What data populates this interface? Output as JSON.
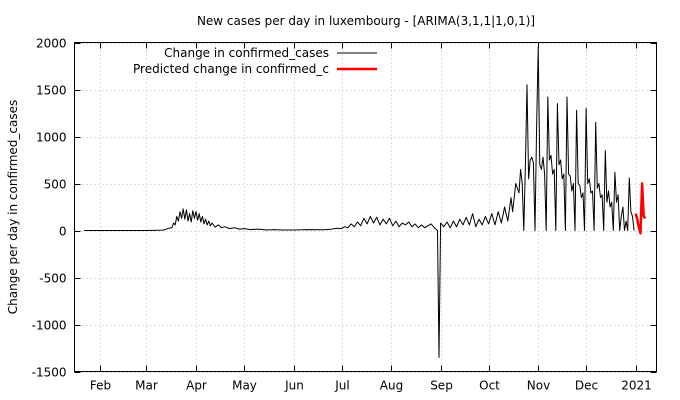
{
  "chart_data": {
    "type": "line",
    "title": "New cases per day in luxembourg -  [ARIMA(3,1,1|1,0,1)]",
    "xlabel": "",
    "ylabel": "Change per day in confirmed_cases",
    "ylim": [
      -1500,
      2000
    ],
    "yticks": [
      -1500,
      -1000,
      -500,
      0,
      500,
      1000,
      1500,
      2000
    ],
    "xlim": [
      "2020-01-16",
      "2021-01-14"
    ],
    "xticks": [
      {
        "label": "Feb",
        "date": "2020-02-01"
      },
      {
        "label": "Mar",
        "date": "2020-03-01"
      },
      {
        "label": "Apr",
        "date": "2020-04-01"
      },
      {
        "label": "May",
        "date": "2020-05-01"
      },
      {
        "label": "Jun",
        "date": "2020-06-01"
      },
      {
        "label": "Jul",
        "date": "2020-07-01"
      },
      {
        "label": "Aug",
        "date": "2020-08-01"
      },
      {
        "label": "Sep",
        "date": "2020-09-01"
      },
      {
        "label": "Oct",
        "date": "2020-10-01"
      },
      {
        "label": "Nov",
        "date": "2020-11-01"
      },
      {
        "label": "Dec",
        "date": "2020-12-01"
      },
      {
        "label": "2021",
        "date": "2021-01-01"
      }
    ],
    "grid": true,
    "legend_position": "top-left",
    "series": [
      {
        "name": "Change in confirmed_cases",
        "color": "#000000",
        "points": [
          [
            "2020-01-22",
            0
          ],
          [
            "2020-02-10",
            0
          ],
          [
            "2020-02-29",
            0
          ],
          [
            "2020-03-05",
            1
          ],
          [
            "2020-03-08",
            2
          ],
          [
            "2020-03-11",
            4
          ],
          [
            "2020-03-13",
            10
          ],
          [
            "2020-03-15",
            25
          ],
          [
            "2020-03-17",
            30
          ],
          [
            "2020-03-18",
            80
          ],
          [
            "2020-03-19",
            60
          ],
          [
            "2020-03-20",
            150
          ],
          [
            "2020-03-21",
            100
          ],
          [
            "2020-03-22",
            200
          ],
          [
            "2020-03-23",
            130
          ],
          [
            "2020-03-24",
            230
          ],
          [
            "2020-03-25",
            120
          ],
          [
            "2020-03-26",
            220
          ],
          [
            "2020-03-27",
            100
          ],
          [
            "2020-03-28",
            180
          ],
          [
            "2020-03-29",
            90
          ],
          [
            "2020-03-30",
            210
          ],
          [
            "2020-03-31",
            130
          ],
          [
            "2020-04-01",
            200
          ],
          [
            "2020-04-02",
            110
          ],
          [
            "2020-04-03",
            180
          ],
          [
            "2020-04-04",
            90
          ],
          [
            "2020-04-05",
            150
          ],
          [
            "2020-04-06",
            70
          ],
          [
            "2020-04-07",
            120
          ],
          [
            "2020-04-08",
            60
          ],
          [
            "2020-04-09",
            100
          ],
          [
            "2020-04-10",
            50
          ],
          [
            "2020-04-11",
            80
          ],
          [
            "2020-04-13",
            35
          ],
          [
            "2020-04-15",
            60
          ],
          [
            "2020-04-17",
            30
          ],
          [
            "2020-04-19",
            40
          ],
          [
            "2020-04-22",
            20
          ],
          [
            "2020-04-25",
            30
          ],
          [
            "2020-04-28",
            15
          ],
          [
            "2020-05-01",
            20
          ],
          [
            "2020-05-05",
            10
          ],
          [
            "2020-05-10",
            15
          ],
          [
            "2020-05-15",
            5
          ],
          [
            "2020-05-20",
            10
          ],
          [
            "2020-05-25",
            5
          ],
          [
            "2020-06-01",
            5
          ],
          [
            "2020-06-10",
            10
          ],
          [
            "2020-06-20",
            8
          ],
          [
            "2020-06-25",
            15
          ],
          [
            "2020-06-28",
            25
          ],
          [
            "2020-07-01",
            20
          ],
          [
            "2020-07-03",
            40
          ],
          [
            "2020-07-05",
            30
          ],
          [
            "2020-07-07",
            70
          ],
          [
            "2020-07-09",
            40
          ],
          [
            "2020-07-11",
            90
          ],
          [
            "2020-07-13",
            50
          ],
          [
            "2020-07-15",
            130
          ],
          [
            "2020-07-17",
            70
          ],
          [
            "2020-07-19",
            150
          ],
          [
            "2020-07-21",
            80
          ],
          [
            "2020-07-23",
            140
          ],
          [
            "2020-07-25",
            60
          ],
          [
            "2020-07-27",
            120
          ],
          [
            "2020-07-29",
            70
          ],
          [
            "2020-07-31",
            130
          ],
          [
            "2020-08-02",
            50
          ],
          [
            "2020-08-04",
            100
          ],
          [
            "2020-08-06",
            40
          ],
          [
            "2020-08-08",
            80
          ],
          [
            "2020-08-10",
            60
          ],
          [
            "2020-08-12",
            90
          ],
          [
            "2020-08-14",
            40
          ],
          [
            "2020-08-16",
            70
          ],
          [
            "2020-08-18",
            30
          ],
          [
            "2020-08-20",
            60
          ],
          [
            "2020-08-22",
            30
          ],
          [
            "2020-08-24",
            50
          ],
          [
            "2020-08-26",
            70
          ],
          [
            "2020-08-28",
            30
          ],
          [
            "2020-08-30",
            0
          ],
          [
            "2020-08-31",
            -1350
          ],
          [
            "2020-09-01",
            80
          ],
          [
            "2020-09-03",
            40
          ],
          [
            "2020-09-05",
            90
          ],
          [
            "2020-09-07",
            30
          ],
          [
            "2020-09-09",
            100
          ],
          [
            "2020-09-11",
            40
          ],
          [
            "2020-09-13",
            120
          ],
          [
            "2020-09-15",
            60
          ],
          [
            "2020-09-17",
            140
          ],
          [
            "2020-09-19",
            60
          ],
          [
            "2020-09-21",
            180
          ],
          [
            "2020-09-23",
            40
          ],
          [
            "2020-09-25",
            120
          ],
          [
            "2020-09-27",
            60
          ],
          [
            "2020-09-29",
            150
          ],
          [
            "2020-10-01",
            70
          ],
          [
            "2020-10-03",
            180
          ],
          [
            "2020-10-05",
            60
          ],
          [
            "2020-10-07",
            200
          ],
          [
            "2020-10-09",
            80
          ],
          [
            "2020-10-11",
            250
          ],
          [
            "2020-10-13",
            100
          ],
          [
            "2020-10-15",
            350
          ],
          [
            "2020-10-16",
            200
          ],
          [
            "2020-10-18",
            500
          ],
          [
            "2020-10-20",
            400
          ],
          [
            "2020-10-21",
            650
          ],
          [
            "2020-10-22",
            500
          ],
          [
            "2020-10-23",
            0
          ],
          [
            "2020-10-24",
            700
          ],
          [
            "2020-10-25",
            1550
          ],
          [
            "2020-10-26",
            550
          ],
          [
            "2020-10-27",
            750
          ],
          [
            "2020-10-28",
            780
          ],
          [
            "2020-10-29",
            720
          ],
          [
            "2020-10-30",
            0
          ],
          [
            "2020-10-31",
            1100
          ],
          [
            "2020-11-01",
            1950
          ],
          [
            "2020-11-02",
            700
          ],
          [
            "2020-11-03",
            650
          ],
          [
            "2020-11-04",
            780
          ],
          [
            "2020-11-05",
            600
          ],
          [
            "2020-11-06",
            0
          ],
          [
            "2020-11-07",
            1420
          ],
          [
            "2020-11-08",
            750
          ],
          [
            "2020-11-09",
            800
          ],
          [
            "2020-11-10",
            600
          ],
          [
            "2020-11-11",
            650
          ],
          [
            "2020-11-12",
            0
          ],
          [
            "2020-11-13",
            1350
          ],
          [
            "2020-11-14",
            700
          ],
          [
            "2020-11-15",
            750
          ],
          [
            "2020-11-16",
            550
          ],
          [
            "2020-11-17",
            600
          ],
          [
            "2020-11-18",
            0
          ],
          [
            "2020-11-19",
            1420
          ],
          [
            "2020-11-20",
            600
          ],
          [
            "2020-11-21",
            580
          ],
          [
            "2020-11-22",
            420
          ],
          [
            "2020-11-23",
            500
          ],
          [
            "2020-11-24",
            0
          ],
          [
            "2020-11-25",
            1280
          ],
          [
            "2020-11-26",
            500
          ],
          [
            "2020-11-27",
            480
          ],
          [
            "2020-11-28",
            350
          ],
          [
            "2020-11-29",
            400
          ],
          [
            "2020-11-30",
            0
          ],
          [
            "2020-12-01",
            1300
          ],
          [
            "2020-12-02",
            500
          ],
          [
            "2020-12-03",
            550
          ],
          [
            "2020-12-04",
            400
          ],
          [
            "2020-12-05",
            420
          ],
          [
            "2020-12-06",
            0
          ],
          [
            "2020-12-07",
            1150
          ],
          [
            "2020-12-08",
            450
          ],
          [
            "2020-12-09",
            500
          ],
          [
            "2020-12-10",
            350
          ],
          [
            "2020-12-11",
            380
          ],
          [
            "2020-12-12",
            0
          ],
          [
            "2020-12-13",
            850
          ],
          [
            "2020-12-14",
            300
          ],
          [
            "2020-12-15",
            420
          ],
          [
            "2020-12-16",
            250
          ],
          [
            "2020-12-17",
            300
          ],
          [
            "2020-12-18",
            0
          ],
          [
            "2020-12-19",
            620
          ],
          [
            "2020-12-20",
            300
          ],
          [
            "2020-12-21",
            380
          ],
          [
            "2020-12-22",
            0
          ],
          [
            "2020-12-23",
            150
          ],
          [
            "2020-12-24",
            250
          ],
          [
            "2020-12-25",
            0
          ],
          [
            "2020-12-26",
            100
          ],
          [
            "2020-12-27",
            0
          ],
          [
            "2020-12-28",
            560
          ],
          [
            "2020-12-29",
            200
          ],
          [
            "2020-12-30",
            150
          ],
          [
            "2020-12-31",
            0
          ]
        ]
      },
      {
        "name": "Predicted change in confirmed_c",
        "color": "#ff0000",
        "points": [
          [
            "2021-01-01",
            180
          ],
          [
            "2021-01-02",
            120
          ],
          [
            "2021-01-03",
            30
          ],
          [
            "2021-01-04",
            -30
          ],
          [
            "2021-01-05",
            500
          ],
          [
            "2021-01-06",
            150
          ],
          [
            "2021-01-07",
            130
          ]
        ]
      }
    ]
  }
}
